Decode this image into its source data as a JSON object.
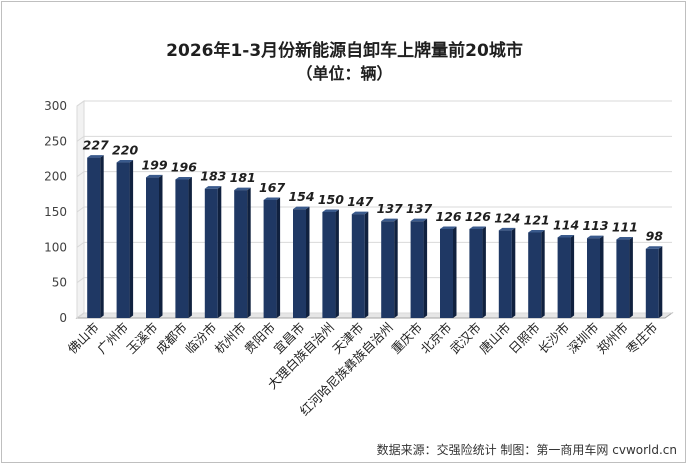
{
  "chart_data": {
    "type": "bar",
    "title": "2026年1-3月份新能源自卸车上牌量前20城市",
    "subtitle": "（单位：辆）",
    "xlabel": "",
    "ylabel": "",
    "ylim": [
      0,
      300
    ],
    "yticks": [
      0,
      50,
      100,
      150,
      200,
      250,
      300
    ],
    "categories": [
      "佛山市",
      "广州市",
      "玉溪市",
      "成都市",
      "临汾市",
      "杭州市",
      "贵阳市",
      "宜昌市",
      "大理白族自治州",
      "天津市",
      "红河哈尼族彝族自治州",
      "重庆市",
      "北京市",
      "武汉市",
      "唐山市",
      "日照市",
      "长沙市",
      "深圳市",
      "郑州市",
      "枣庄市"
    ],
    "values": [
      227,
      220,
      199,
      196,
      183,
      181,
      167,
      154,
      150,
      147,
      137,
      137,
      126,
      126,
      124,
      121,
      114,
      113,
      111,
      98
    ],
    "grid": true,
    "legend": "none",
    "colors": {
      "bar_front": "#1f3864",
      "bar_side": "#10213f",
      "bar_top": "#3a5a8c",
      "grid": "#d9d9d9",
      "floor": "#a6a6a6"
    }
  },
  "source_text": "数据来源：交强险统计 制图：第一商用车网 cvworld.cn"
}
